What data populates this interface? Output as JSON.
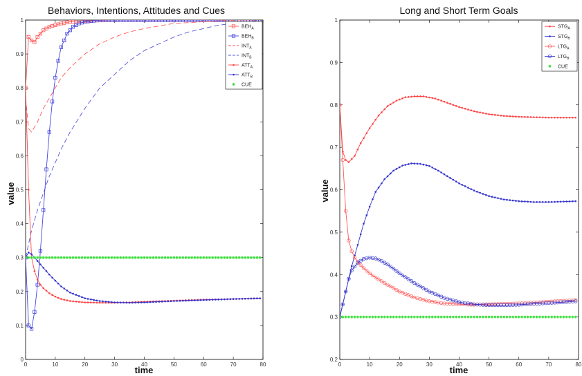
{
  "chart_data": [
    {
      "type": "line",
      "title": "Behaviors, Intentions, Attitudes and Cues",
      "xlabel": "time",
      "ylabel": "value",
      "xlim": [
        0,
        80
      ],
      "ylim": [
        0,
        1
      ],
      "xticks": [
        "0",
        "10",
        "20",
        "30",
        "40",
        "50",
        "60",
        "70",
        "80"
      ],
      "yticks": [
        "0",
        "0.1",
        "0.2",
        "0.3",
        "0.4",
        "0.5",
        "0.6",
        "0.7",
        "0.8",
        "0.9",
        "1"
      ],
      "legend_position": "top-right",
      "grid": false,
      "series": [
        {
          "name": "BEH",
          "sub": "A",
          "color": "#ff5555",
          "style": "solid",
          "marker": "square",
          "x": [
            0,
            1,
            2,
            3,
            4,
            5,
            6,
            8,
            10,
            12,
            15,
            20,
            30,
            40,
            50,
            60,
            70,
            79
          ],
          "y": [
            0.8,
            0.95,
            0.94,
            0.935,
            0.95,
            0.96,
            0.97,
            0.98,
            0.985,
            0.99,
            0.995,
            0.998,
            1.0,
            1.0,
            1.0,
            1.0,
            1.0,
            1.0
          ]
        },
        {
          "name": "BEH",
          "sub": "B",
          "color": "#4444dd",
          "style": "solid",
          "marker": "square",
          "x": [
            0,
            1,
            2,
            3,
            4,
            5,
            6,
            7,
            8,
            9,
            10,
            11,
            12,
            13,
            14,
            16,
            18,
            20,
            25,
            30,
            40,
            50,
            60,
            70,
            79
          ],
          "y": [
            0.3,
            0.1,
            0.09,
            0.14,
            0.22,
            0.32,
            0.44,
            0.56,
            0.67,
            0.76,
            0.83,
            0.88,
            0.92,
            0.94,
            0.96,
            0.98,
            0.99,
            0.995,
            1.0,
            1.0,
            1.0,
            1.0,
            1.0,
            1.0,
            1.0
          ]
        },
        {
          "name": "INT",
          "sub": "A",
          "color": "#ff5555",
          "style": "dashed",
          "marker": "none",
          "x": [
            0,
            1,
            2,
            4,
            6,
            8,
            10,
            12,
            15,
            20,
            25,
            30,
            35,
            40,
            50,
            60,
            70,
            79
          ],
          "y": [
            0.77,
            0.68,
            0.67,
            0.7,
            0.74,
            0.77,
            0.8,
            0.83,
            0.86,
            0.9,
            0.93,
            0.95,
            0.965,
            0.975,
            0.99,
            0.995,
            1.0,
            1.0
          ]
        },
        {
          "name": "INT",
          "sub": "B",
          "color": "#5555dd",
          "style": "dashed",
          "marker": "none",
          "x": [
            0,
            2,
            4,
            6,
            8,
            10,
            12,
            15,
            20,
            25,
            30,
            35,
            40,
            45,
            50,
            55,
            60,
            65,
            70,
            79
          ],
          "y": [
            0.3,
            0.38,
            0.44,
            0.49,
            0.54,
            0.58,
            0.62,
            0.67,
            0.74,
            0.8,
            0.84,
            0.88,
            0.91,
            0.93,
            0.95,
            0.965,
            0.975,
            0.985,
            0.99,
            1.0
          ]
        },
        {
          "name": "ATT",
          "sub": "A",
          "color": "#ff4444",
          "style": "solid",
          "marker": "dot",
          "x": [
            0,
            1,
            2,
            3,
            4,
            5,
            6,
            8,
            10,
            12,
            15,
            20,
            25,
            30,
            35,
            40,
            50,
            60,
            70,
            79
          ],
          "y": [
            0.8,
            0.5,
            0.3,
            0.26,
            0.235,
            0.22,
            0.21,
            0.195,
            0.185,
            0.178,
            0.172,
            0.168,
            0.167,
            0.167,
            0.168,
            0.17,
            0.173,
            0.176,
            0.178,
            0.18
          ]
        },
        {
          "name": "ATT",
          "sub": "B",
          "color": "#3333cc",
          "style": "solid",
          "marker": "dot",
          "x": [
            0,
            1,
            2,
            3,
            4,
            6,
            8,
            10,
            12,
            15,
            20,
            25,
            30,
            35,
            40,
            50,
            60,
            70,
            79
          ],
          "y": [
            0.3,
            0.315,
            0.31,
            0.3,
            0.29,
            0.27,
            0.25,
            0.232,
            0.215,
            0.197,
            0.18,
            0.172,
            0.168,
            0.167,
            0.168,
            0.172,
            0.175,
            0.178,
            0.18
          ]
        },
        {
          "name": "CUE",
          "sub": "",
          "color": "#33dd33",
          "style": "none",
          "marker": "star",
          "x": [
            0,
            79
          ],
          "y": [
            0.3,
            0.3
          ]
        }
      ]
    },
    {
      "type": "line",
      "title": "Long and Short Term Goals",
      "xlabel": "time",
      "ylabel": "value",
      "xlim": [
        0,
        80
      ],
      "ylim": [
        0.2,
        1
      ],
      "xticks": [
        "0",
        "10",
        "20",
        "30",
        "40",
        "50",
        "60",
        "70",
        "80"
      ],
      "yticks": [
        "0.2",
        "0.3",
        "0.4",
        "0.5",
        "0.6",
        "0.7",
        "0.8",
        "0.9",
        "1"
      ],
      "legend_position": "top-right",
      "grid": false,
      "series": [
        {
          "name": "STG",
          "sub": "A",
          "color": "#ff4444",
          "style": "solid",
          "marker": "dot",
          "x": [
            0,
            1,
            2,
            3,
            5,
            7,
            10,
            13,
            16,
            19,
            22,
            25,
            28,
            32,
            36,
            40,
            45,
            50,
            55,
            60,
            65,
            70,
            75,
            79
          ],
          "y": [
            0.8,
            0.69,
            0.67,
            0.665,
            0.68,
            0.71,
            0.745,
            0.775,
            0.797,
            0.81,
            0.818,
            0.82,
            0.82,
            0.815,
            0.805,
            0.795,
            0.785,
            0.778,
            0.774,
            0.772,
            0.771,
            0.77,
            0.77,
            0.77
          ]
        },
        {
          "name": "STG",
          "sub": "B",
          "color": "#3333cc",
          "style": "solid",
          "marker": "dot",
          "x": [
            0,
            1,
            2,
            4,
            6,
            8,
            10,
            12,
            15,
            18,
            21,
            24,
            27,
            30,
            33,
            36,
            40,
            45,
            50,
            55,
            60,
            65,
            70,
            75,
            79
          ],
          "y": [
            0.3,
            0.33,
            0.36,
            0.42,
            0.47,
            0.52,
            0.56,
            0.595,
            0.625,
            0.645,
            0.657,
            0.662,
            0.661,
            0.656,
            0.645,
            0.632,
            0.615,
            0.598,
            0.585,
            0.577,
            0.573,
            0.571,
            0.571,
            0.572,
            0.573
          ]
        },
        {
          "name": "LTG",
          "sub": "A",
          "color": "#ff5555",
          "style": "solid",
          "marker": "circle",
          "x": [
            0,
            1,
            2,
            3,
            4,
            5,
            6,
            8,
            10,
            12,
            15,
            18,
            20,
            25,
            30,
            35,
            40,
            45,
            50,
            55,
            60,
            65,
            70,
            75,
            79
          ],
          "y": [
            0.8,
            0.67,
            0.55,
            0.48,
            0.455,
            0.44,
            0.43,
            0.415,
            0.403,
            0.393,
            0.38,
            0.368,
            0.36,
            0.346,
            0.337,
            0.332,
            0.33,
            0.329,
            0.33,
            0.331,
            0.332,
            0.334,
            0.336,
            0.338,
            0.34
          ]
        },
        {
          "name": "LTG",
          "sub": "B",
          "color": "#3333cc",
          "style": "solid",
          "marker": "circle",
          "x": [
            0,
            1,
            2,
            3,
            4,
            6,
            8,
            10,
            12,
            14,
            16,
            18,
            20,
            25,
            30,
            35,
            40,
            45,
            50,
            55,
            60,
            65,
            70,
            75,
            79
          ],
          "y": [
            0.3,
            0.33,
            0.36,
            0.39,
            0.41,
            0.428,
            0.437,
            0.44,
            0.438,
            0.432,
            0.424,
            0.414,
            0.403,
            0.38,
            0.36,
            0.345,
            0.335,
            0.33,
            0.328,
            0.328,
            0.329,
            0.331,
            0.333,
            0.335,
            0.337
          ]
        },
        {
          "name": "CUE",
          "sub": "",
          "color": "#33dd33",
          "style": "none",
          "marker": "star",
          "x": [
            0,
            79
          ],
          "y": [
            0.3,
            0.3
          ]
        }
      ]
    }
  ]
}
